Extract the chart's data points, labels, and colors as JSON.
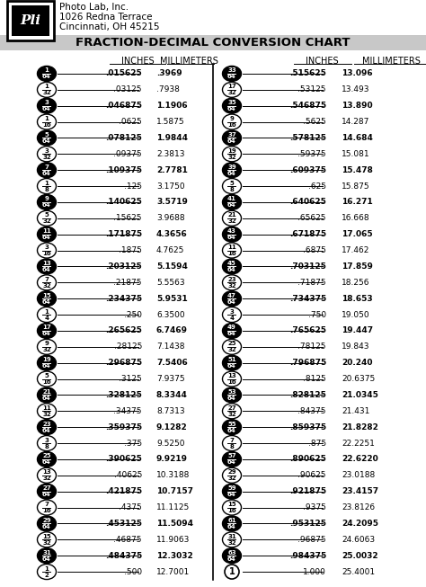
{
  "title": "FRACTION-DECIMAL CONVERSION CHART",
  "header_company": "Photo Lab, Inc.",
  "header_address": "1026 Redna Terrace",
  "header_city": "Cincinnati, OH 45215",
  "rows_left": [
    {
      "frac": "1/64",
      "filled": true,
      "decimal": ".015625",
      "mm": ".3969"
    },
    {
      "frac": "1/32",
      "filled": false,
      "decimal": ".03125",
      "mm": ".7938"
    },
    {
      "frac": "3/64",
      "filled": true,
      "decimal": ".046875",
      "mm": "1.1906"
    },
    {
      "frac": "1/16",
      "filled": false,
      "decimal": ".0625",
      "mm": "1.5875"
    },
    {
      "frac": "5/64",
      "filled": true,
      "decimal": ".078125",
      "mm": "1.9844"
    },
    {
      "frac": "3/32",
      "filled": false,
      "decimal": ".09375",
      "mm": "2.3813"
    },
    {
      "frac": "7/64",
      "filled": true,
      "decimal": ".109375",
      "mm": "2.7781"
    },
    {
      "frac": "1/8",
      "filled": false,
      "decimal": ".125",
      "mm": "3.1750"
    },
    {
      "frac": "9/64",
      "filled": true,
      "decimal": ".140625",
      "mm": "3.5719"
    },
    {
      "frac": "5/32",
      "filled": false,
      "decimal": ".15625",
      "mm": "3.9688"
    },
    {
      "frac": "11/64",
      "filled": true,
      "decimal": ".171875",
      "mm": "4.3656"
    },
    {
      "frac": "3/16",
      "filled": false,
      "decimal": ".1875",
      "mm": "4.7625"
    },
    {
      "frac": "13/64",
      "filled": true,
      "decimal": ".203125",
      "mm": "5.1594"
    },
    {
      "frac": "7/32",
      "filled": false,
      "decimal": ".21875",
      "mm": "5.5563"
    },
    {
      "frac": "15/64",
      "filled": true,
      "decimal": ".234375",
      "mm": "5.9531"
    },
    {
      "frac": "1/4",
      "filled": false,
      "decimal": ".250",
      "mm": "6.3500"
    },
    {
      "frac": "17/64",
      "filled": true,
      "decimal": ".265625",
      "mm": "6.7469"
    },
    {
      "frac": "9/32",
      "filled": false,
      "decimal": ".28125",
      "mm": "7.1438"
    },
    {
      "frac": "19/64",
      "filled": true,
      "decimal": ".296875",
      "mm": "7.5406"
    },
    {
      "frac": "5/16",
      "filled": false,
      "decimal": ".3125",
      "mm": "7.9375"
    },
    {
      "frac": "21/64",
      "filled": true,
      "decimal": ".328125",
      "mm": "8.3344"
    },
    {
      "frac": "11/32",
      "filled": false,
      "decimal": ".34375",
      "mm": "8.7313"
    },
    {
      "frac": "23/64",
      "filled": true,
      "decimal": ".359375",
      "mm": "9.1282"
    },
    {
      "frac": "3/8",
      "filled": false,
      "decimal": ".375",
      "mm": "9.5250"
    },
    {
      "frac": "25/64",
      "filled": true,
      "decimal": ".390625",
      "mm": "9.9219"
    },
    {
      "frac": "13/32",
      "filled": false,
      "decimal": ".40625",
      "mm": "10.3188"
    },
    {
      "frac": "27/64",
      "filled": true,
      "decimal": ".421875",
      "mm": "10.7157"
    },
    {
      "frac": "7/16",
      "filled": false,
      "decimal": ".4375",
      "mm": "11.1125"
    },
    {
      "frac": "29/64",
      "filled": true,
      "decimal": ".453125",
      "mm": "11.5094"
    },
    {
      "frac": "15/32",
      "filled": false,
      "decimal": ".46875",
      "mm": "11.9063"
    },
    {
      "frac": "31/64",
      "filled": true,
      "decimal": ".484375",
      "mm": "12.3032"
    },
    {
      "frac": "1/2",
      "filled": false,
      "decimal": ".500",
      "mm": "12.7001"
    }
  ],
  "rows_right": [
    {
      "frac": "33/64",
      "filled": true,
      "decimal": ".515625",
      "mm": "13.096"
    },
    {
      "frac": "17/32",
      "filled": false,
      "decimal": ".53125",
      "mm": "13.493"
    },
    {
      "frac": "35/64",
      "filled": true,
      "decimal": ".546875",
      "mm": "13.890"
    },
    {
      "frac": "9/16",
      "filled": false,
      "decimal": ".5625",
      "mm": "14.287"
    },
    {
      "frac": "37/64",
      "filled": true,
      "decimal": ".578125",
      "mm": "14.684"
    },
    {
      "frac": "19/32",
      "filled": false,
      "decimal": ".59375",
      "mm": "15.081"
    },
    {
      "frac": "39/64",
      "filled": true,
      "decimal": ".609375",
      "mm": "15.478"
    },
    {
      "frac": "5/8",
      "filled": false,
      "decimal": ".625",
      "mm": "15.875"
    },
    {
      "frac": "41/64",
      "filled": true,
      "decimal": ".640625",
      "mm": "16.271"
    },
    {
      "frac": "21/32",
      "filled": false,
      "decimal": ".65625",
      "mm": "16.668"
    },
    {
      "frac": "43/64",
      "filled": true,
      "decimal": ".671875",
      "mm": "17.065"
    },
    {
      "frac": "11/16",
      "filled": false,
      "decimal": ".6875",
      "mm": "17.462"
    },
    {
      "frac": "45/64",
      "filled": true,
      "decimal": ".703125",
      "mm": "17.859"
    },
    {
      "frac": "23/32",
      "filled": false,
      "decimal": ".71875",
      "mm": "18.256"
    },
    {
      "frac": "47/64",
      "filled": true,
      "decimal": ".734375",
      "mm": "18.653"
    },
    {
      "frac": "3/4",
      "filled": false,
      "decimal": ".750",
      "mm": "19.050"
    },
    {
      "frac": "49/64",
      "filled": true,
      "decimal": ".765625",
      "mm": "19.447"
    },
    {
      "frac": "25/32",
      "filled": false,
      "decimal": ".78125",
      "mm": "19.843"
    },
    {
      "frac": "51/64",
      "filled": true,
      "decimal": ".796875",
      "mm": "20.240"
    },
    {
      "frac": "13/16",
      "filled": false,
      "decimal": ".8125",
      "mm": "20.6375"
    },
    {
      "frac": "53/64",
      "filled": true,
      "decimal": ".828125",
      "mm": "21.0345"
    },
    {
      "frac": "27/32",
      "filled": false,
      "decimal": ".84375",
      "mm": "21.431"
    },
    {
      "frac": "55/64",
      "filled": true,
      "decimal": ".859375",
      "mm": "21.8282"
    },
    {
      "frac": "7/8",
      "filled": false,
      "decimal": ".875",
      "mm": "22.2251"
    },
    {
      "frac": "57/64",
      "filled": true,
      "decimal": ".890625",
      "mm": "22.6220"
    },
    {
      "frac": "29/32",
      "filled": false,
      "decimal": ".90625",
      "mm": "23.0188"
    },
    {
      "frac": "59/64",
      "filled": true,
      "decimal": ".921875",
      "mm": "23.4157"
    },
    {
      "frac": "15/16",
      "filled": false,
      "decimal": ".9375",
      "mm": "23.8126"
    },
    {
      "frac": "61/64",
      "filled": true,
      "decimal": ".953125",
      "mm": "24.2095"
    },
    {
      "frac": "31/32",
      "filled": false,
      "decimal": ".96875",
      "mm": "24.6063"
    },
    {
      "frac": "63/64",
      "filled": true,
      "decimal": ".984375",
      "mm": "25.0032"
    },
    {
      "frac": "1",
      "filled": false,
      "decimal": "1.000",
      "mm": "25.4001"
    }
  ]
}
